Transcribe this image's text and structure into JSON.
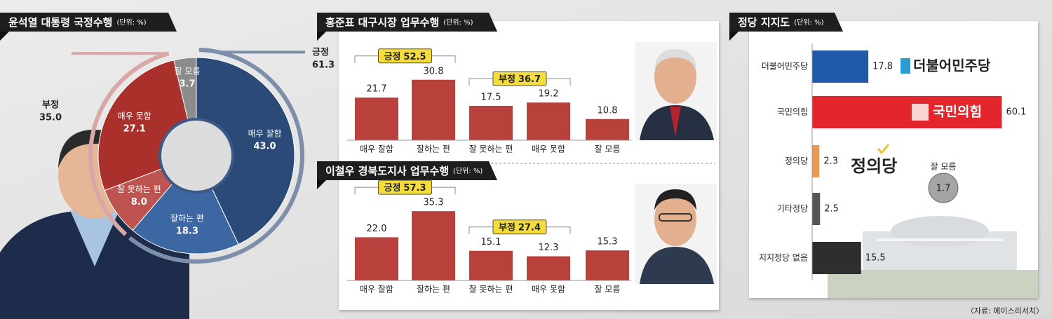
{
  "chart_data": [
    {
      "type": "donut",
      "title": "윤석열 대통령 국정수행",
      "unit": "(단위: %)",
      "categories": [
        "매우 잘함",
        "잘하는 편",
        "잘 못하는 편",
        "매우 못함",
        "잘 모름"
      ],
      "values": [
        43.0,
        18.3,
        8.0,
        27.1,
        3.7
      ],
      "value_labels": [
        "43.0",
        "18.3",
        "8.0",
        "27.1",
        "3.7"
      ],
      "colors": [
        "#2b4a78",
        "#3d67a3",
        "#bd5450",
        "#a9302b",
        "#8c8c8c"
      ],
      "groups": {
        "names": [
          "긍정",
          "부정"
        ],
        "values": [
          61.3,
          35.0
        ],
        "value_labels": [
          "61.3",
          "35.0"
        ],
        "colors": [
          "#7d8fa8",
          "#d9a7a7"
        ]
      }
    },
    {
      "type": "bar",
      "title": "홍준표 대구시장 업무수행",
      "unit": "(단위: %)",
      "categories": [
        "매우 잘함",
        "잘하는 편",
        "잘 못하는 편",
        "매우 못함",
        "잘 모름"
      ],
      "values": [
        21.7,
        30.8,
        17.5,
        19.2,
        10.8
      ],
      "value_labels": [
        "21.7",
        "30.8",
        "17.5",
        "19.2",
        "10.8"
      ],
      "color": "#b8413c",
      "groups": {
        "names": [
          "긍정",
          "부정"
        ],
        "values": [
          52.5,
          36.7
        ],
        "value_labels": [
          "52.5",
          "36.7"
        ]
      }
    },
    {
      "type": "bar",
      "title": "이철우 경북도지사 업무수행",
      "unit": "(단위: %)",
      "categories": [
        "매우 잘함",
        "잘하는 편",
        "잘 못하는 편",
        "매우 못함",
        "잘 모름"
      ],
      "values": [
        22.0,
        35.3,
        15.1,
        12.3,
        15.3
      ],
      "value_labels": [
        "22.0",
        "35.3",
        "15.1",
        "12.3",
        "15.3"
      ],
      "color": "#b8413c",
      "groups": {
        "names": [
          "긍정",
          "부정"
        ],
        "values": [
          57.3,
          27.4
        ],
        "value_labels": [
          "57.3",
          "27.4"
        ]
      }
    },
    {
      "type": "hbar",
      "title": "정당 지지도",
      "unit": "(단위: %)",
      "categories": [
        "더불어민주당",
        "국민의힘",
        "정의당",
        "기타정당",
        "지지정당 없음"
      ],
      "values": [
        17.8,
        60.1,
        2.3,
        2.5,
        15.5
      ],
      "value_labels": [
        "17.8",
        "60.1",
        "2.3",
        "2.5",
        "15.5"
      ],
      "colors": [
        "#1f5aa8",
        "#e2262b",
        "#e89a4c",
        "#555555",
        "#2e2e2e"
      ],
      "logos": [
        "더불어민주당",
        "국민의힘",
        "정의당"
      ],
      "extra": {
        "name": "잘 모름",
        "value": 1.7
      }
    }
  ],
  "source": "〈자료: 에이스리서치〉"
}
